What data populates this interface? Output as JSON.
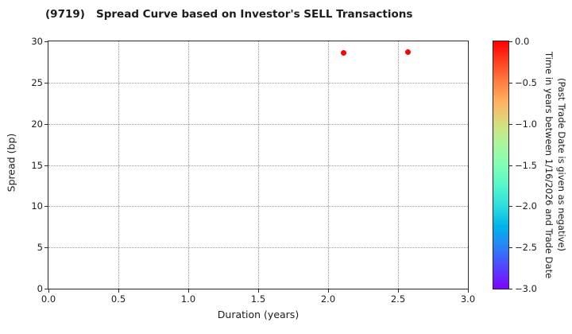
{
  "colors": {
    "background": "#ffffff",
    "text": "#1c1c1c",
    "spine": "#2a2a2a",
    "grid": "#9a9a9a",
    "point": "#ff0000"
  },
  "chart_data": {
    "type": "scatter",
    "title": "(9719)   Spread Curve based on Investor's SELL Transactions",
    "xlabel": "Duration (years)",
    "ylabel": "Spread (bp)",
    "xlim": [
      0.0,
      3.0
    ],
    "ylim": [
      0,
      30
    ],
    "grid": "dotted",
    "legend": "none",
    "xtick_values": [
      0.0,
      0.5,
      1.0,
      1.5,
      2.0,
      2.5,
      3.0
    ],
    "xtick_labels": [
      "0.0",
      "0.5",
      "1.0",
      "1.5",
      "2.0",
      "2.5",
      "3.0"
    ],
    "ytick_values": [
      0,
      5,
      10,
      15,
      20,
      25,
      30
    ],
    "ytick_labels": [
      "0",
      "5",
      "10",
      "15",
      "20",
      "25",
      "30"
    ],
    "points": [
      {
        "x": 2.11,
        "y": 28.6,
        "time_years": 0.0,
        "color": "#ff0000"
      },
      {
        "x": 2.57,
        "y": 28.7,
        "time_years": 0.0,
        "color": "#ff0000"
      }
    ],
    "colorbar": {
      "label_line1": "Time in years between 1/16/2026 and Trade Date",
      "label_line2": "(Past Trade Date is given as negative)",
      "value_range": [
        0.0,
        -3.0
      ],
      "tick_labels": [
        "0.0",
        "−0.5",
        "−1.0",
        "−1.5",
        "−2.0",
        "−2.5",
        "−3.0"
      ],
      "colormap": "rainbow",
      "gradient_stops": [
        "#ff0000",
        "#ff4221",
        "#ff8042",
        "#ffb462",
        "#d5dd80",
        "#aaf69b",
        "#80ffb4",
        "#55f6ca",
        "#2bdddd",
        "#00b4ec",
        "#2b80f6",
        "#5542fd",
        "#8000ff"
      ]
    }
  }
}
